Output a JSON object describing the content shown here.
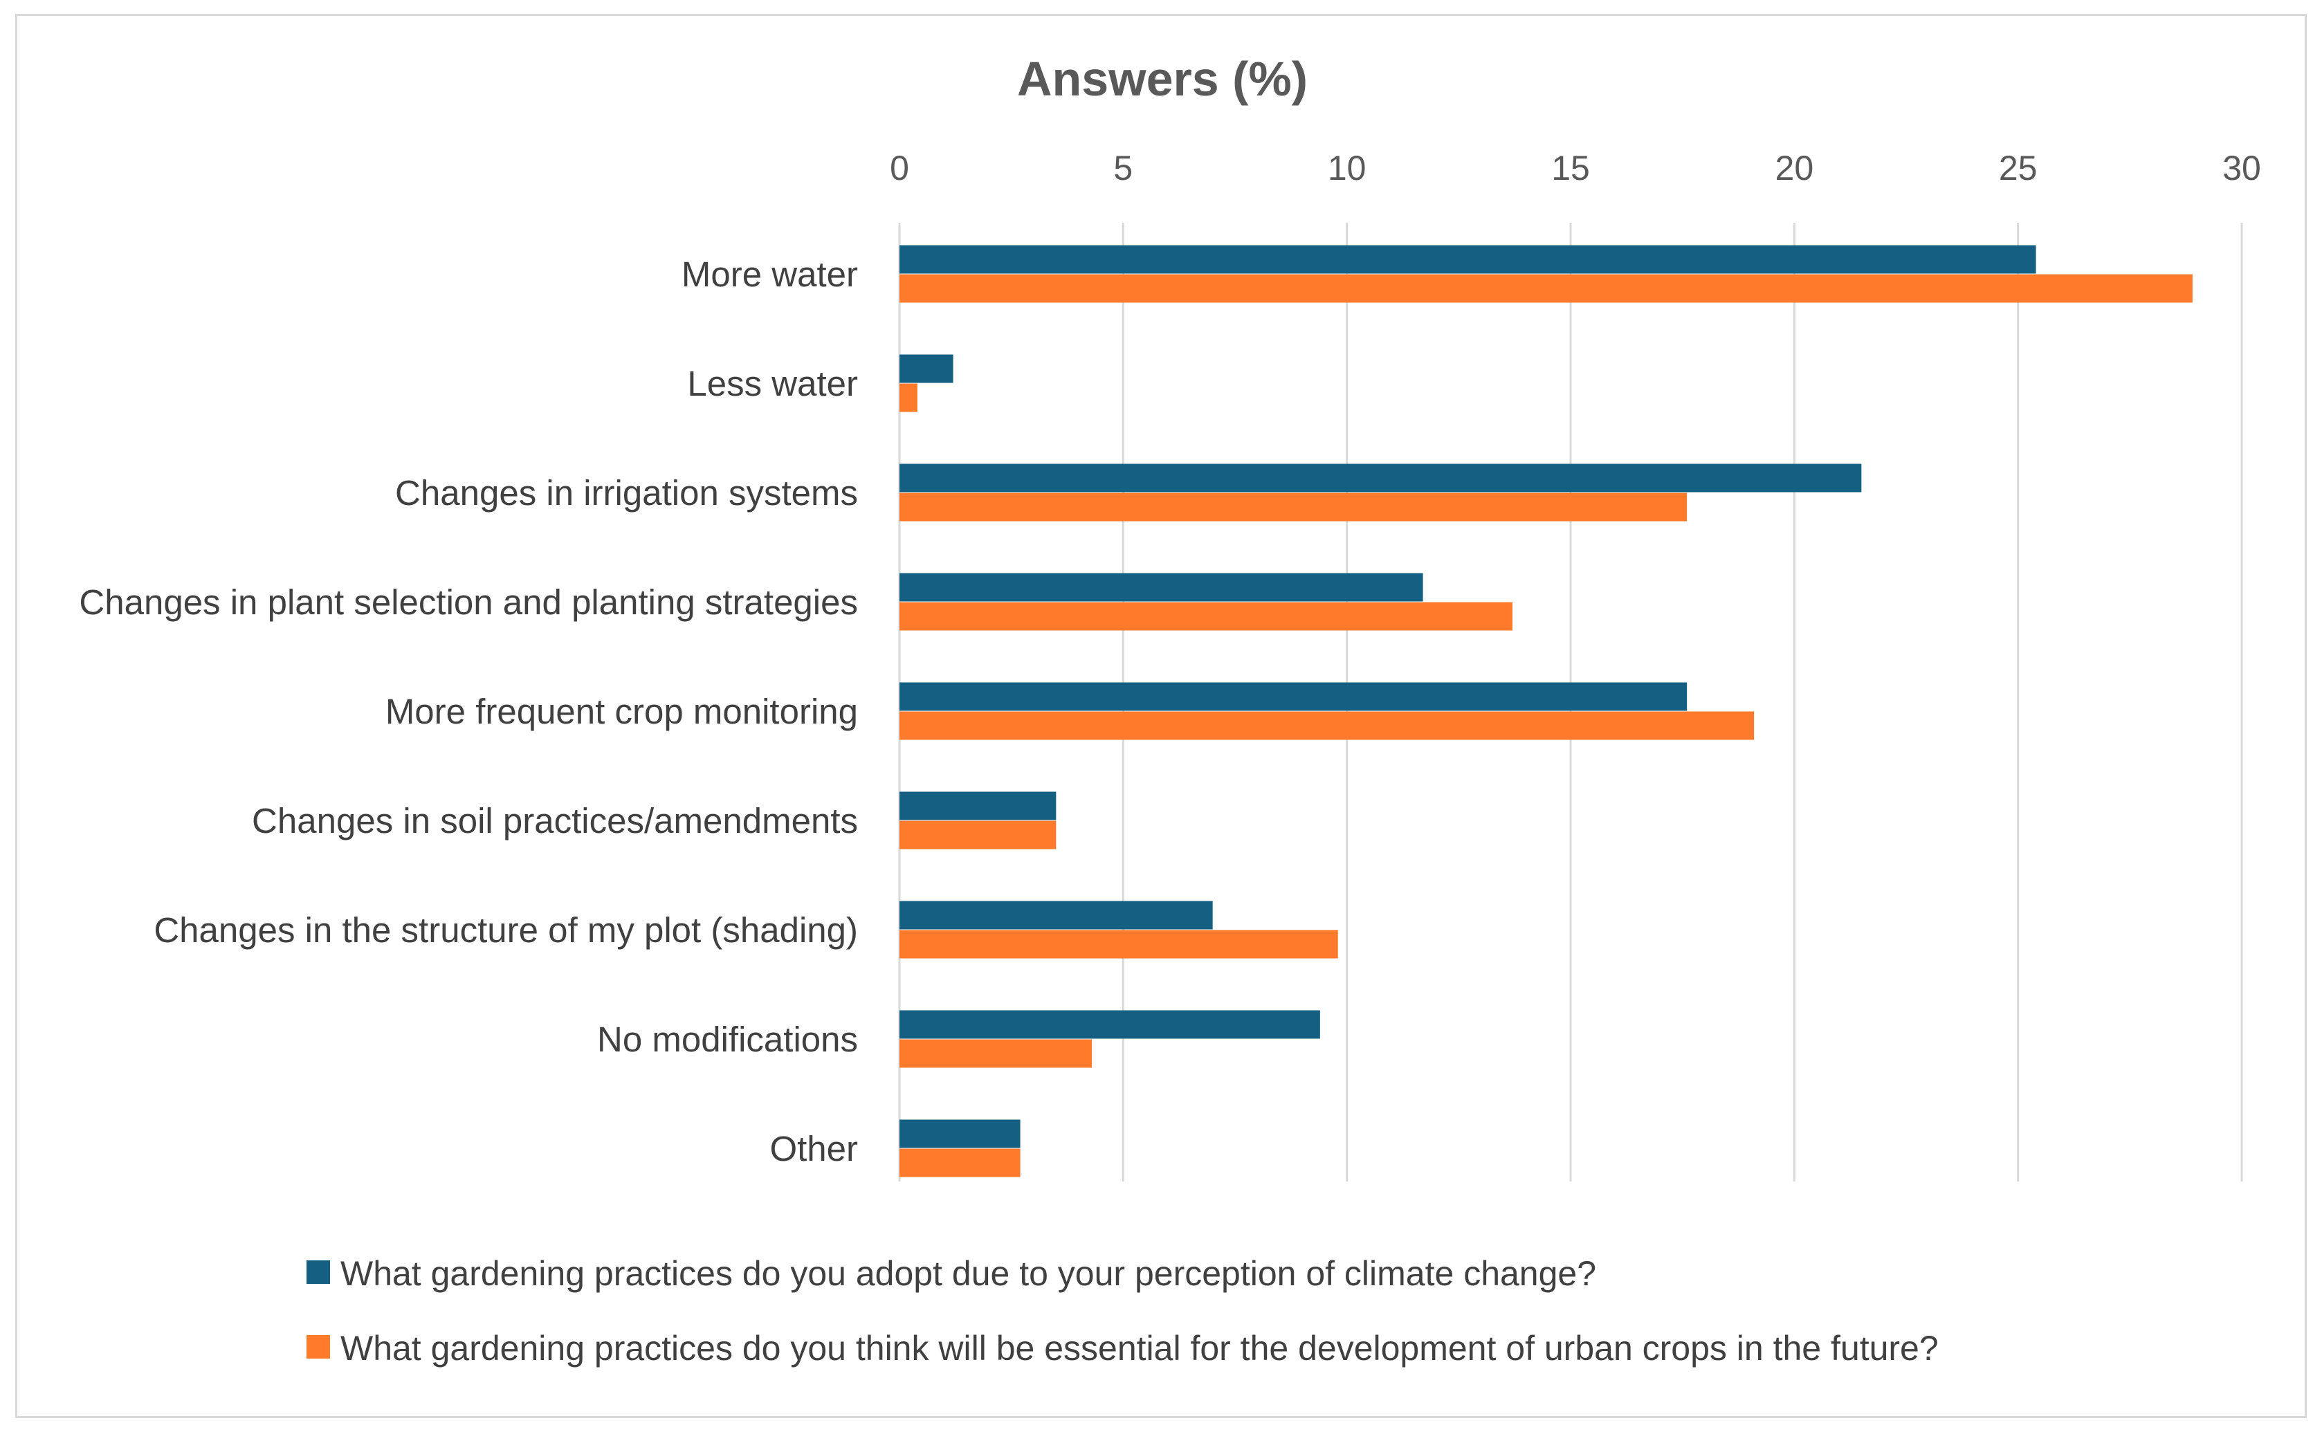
{
  "chart_data": {
    "type": "bar",
    "orientation": "horizontal",
    "title": "Answers (%)",
    "xlabel": "",
    "ylabel": "",
    "xlim": [
      0,
      30
    ],
    "x_ticks": [
      0,
      5,
      10,
      15,
      20,
      25,
      30
    ],
    "x_axis_position": "top",
    "grid": true,
    "legend_position": "bottom",
    "categories": [
      "More water",
      "Less water",
      "Changes in irrigation systems",
      "Changes in plant selection and planting strategies",
      "More frequent crop monitoring",
      "Changes in soil practices/amendments",
      "Changes in the structure of my plot (shading)",
      "No modifications",
      "Other"
    ],
    "series": [
      {
        "name": "What gardening practices do you adopt due to your perception of climate change?",
        "color": "#156082",
        "values": [
          25.4,
          1.2,
          21.5,
          11.7,
          17.6,
          3.5,
          7.0,
          9.4,
          2.7
        ]
      },
      {
        "name": "What gardening practices do you think will be essential for the development of urban crops in the future?",
        "color": "#ff7a2b",
        "values": [
          28.9,
          0.4,
          17.6,
          13.7,
          19.1,
          3.5,
          9.8,
          4.3,
          2.7
        ]
      }
    ]
  }
}
